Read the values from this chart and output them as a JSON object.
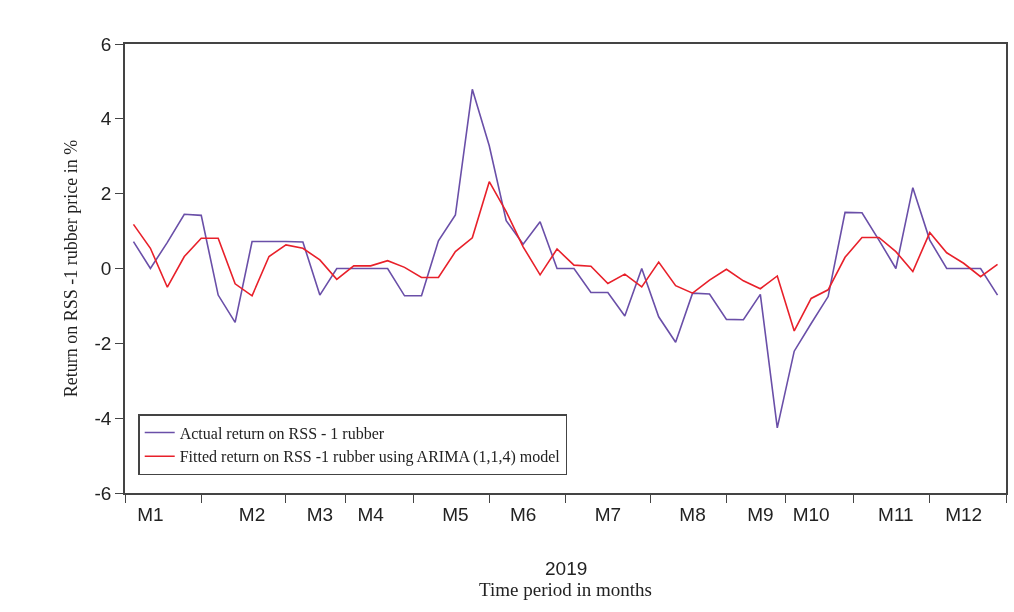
{
  "chart_data": {
    "type": "line",
    "xlabel": "Time period in months",
    "ylabel": "Return on RSS -1 rubber price in %",
    "annotations": [
      "2019"
    ],
    "categories": [
      null,
      "M1",
      null,
      null,
      null,
      null,
      null,
      "M2",
      null,
      null,
      null,
      "M3",
      null,
      null,
      "M4",
      null,
      null,
      null,
      null,
      "M5",
      null,
      null,
      null,
      "M6",
      null,
      null,
      null,
      null,
      "M7",
      null,
      null,
      null,
      null,
      "M8",
      null,
      null,
      null,
      "M9",
      null,
      null,
      "M10",
      null,
      null,
      null,
      null,
      "M11",
      null,
      null,
      null,
      "M12",
      null,
      null
    ],
    "series": [
      {
        "name": "Actual return on RSS - 1 rubber",
        "color": "#6a4fa8",
        "values": [
          0.72,
          0.0,
          0.7,
          1.45,
          1.42,
          -0.71,
          -1.44,
          0.72,
          0.72,
          0.72,
          0.71,
          -0.71,
          0.0,
          0.0,
          0.0,
          0.0,
          -0.73,
          -0.73,
          0.74,
          1.43,
          4.79,
          3.28,
          1.28,
          0.65,
          1.25,
          0.0,
          0.0,
          -0.64,
          -0.64,
          -1.27,
          0.0,
          -1.29,
          -1.97,
          -0.66,
          -0.68,
          -1.36,
          -1.37,
          -0.69,
          -4.26,
          -2.21,
          -1.47,
          -0.75,
          1.5,
          1.49,
          0.76,
          0.0,
          2.16,
          0.76,
          0.0,
          0.0,
          0.0,
          -0.71
        ]
      },
      {
        "name": "Fitted return on RSS -1 rubber using ARIMA (1,1,4) model",
        "color": "#e8202a",
        "values": [
          1.18,
          0.54,
          -0.5,
          0.32,
          0.81,
          0.81,
          -0.41,
          -0.73,
          0.32,
          0.63,
          0.54,
          0.23,
          -0.29,
          0.07,
          0.07,
          0.21,
          0.03,
          -0.24,
          -0.24,
          0.45,
          0.82,
          2.32,
          1.52,
          0.58,
          -0.17,
          0.52,
          0.09,
          0.06,
          -0.4,
          -0.15,
          -0.49,
          0.17,
          -0.46,
          -0.66,
          -0.31,
          -0.02,
          -0.33,
          -0.54,
          -0.2,
          -1.67,
          -0.8,
          -0.57,
          0.3,
          0.83,
          0.83,
          0.45,
          -0.08,
          0.96,
          0.42,
          0.14,
          -0.22,
          0.11
        ]
      }
    ],
    "ylim": [
      -6,
      6
    ],
    "yticks": [
      -6,
      -4,
      -2,
      0,
      2,
      4,
      6
    ],
    "grid": false,
    "legend": "bottom left",
    "marker": "none",
    "line_style": "solid"
  }
}
